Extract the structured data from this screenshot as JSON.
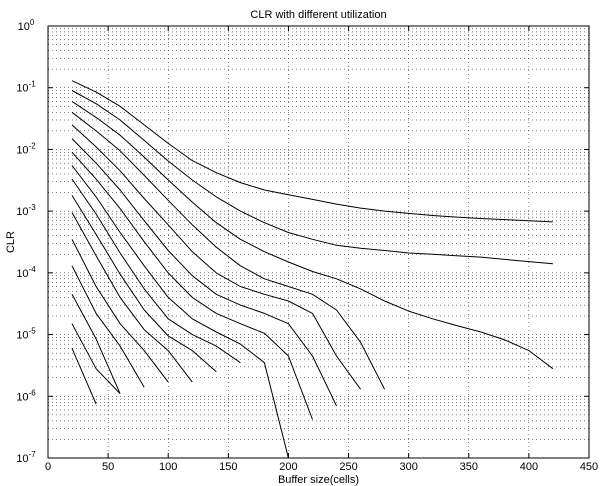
{
  "chart_data": {
    "type": "line",
    "title": "CLR with different utilization",
    "xlabel": "Buffer size(cells)",
    "ylabel": "CLR",
    "xlim": [
      0,
      450
    ],
    "ylim": [
      1e-07,
      1
    ],
    "yscale": "log",
    "grid": true,
    "x_ticks": [
      0,
      50,
      100,
      150,
      200,
      250,
      300,
      350,
      400,
      450
    ],
    "x_tick_labels": [
      "0",
      "50",
      "100",
      "150",
      "200",
      "250",
      "300",
      "350",
      "400",
      "450"
    ],
    "y_tick_exponents": [
      0,
      -1,
      -2,
      -3,
      -4,
      -5,
      -6,
      -7
    ],
    "y_tick_base": "10",
    "series": [
      {
        "x": [
          20,
          40,
          60,
          80,
          100,
          120,
          140,
          160,
          180,
          200,
          220,
          240,
          260,
          280,
          300,
          320,
          340,
          360,
          380,
          400,
          420
        ],
        "y": [
          0.13,
          0.085,
          0.05,
          0.025,
          0.0125,
          0.0066,
          0.0042,
          0.0029,
          0.0022,
          0.00185,
          0.00155,
          0.0013,
          0.00112,
          0.001,
          0.00092,
          0.00085,
          0.0008,
          0.00076,
          0.00073,
          0.0007,
          0.00067
        ]
      },
      {
        "x": [
          20,
          40,
          60,
          80,
          100,
          120,
          140,
          160,
          180,
          200,
          220,
          240,
          260,
          280,
          300,
          320,
          340,
          360,
          380,
          400,
          420
        ],
        "y": [
          0.09,
          0.055,
          0.03,
          0.014,
          0.0065,
          0.0032,
          0.0017,
          0.001,
          0.00065,
          0.00045,
          0.00035,
          0.00028,
          0.00025,
          0.00023,
          0.00021,
          0.0002,
          0.00019,
          0.00018,
          0.000165,
          0.000152,
          0.00014
        ]
      },
      {
        "x": [
          20,
          40,
          60,
          80,
          100,
          120,
          140,
          160,
          180,
          200,
          220,
          240,
          260,
          280,
          300,
          320,
          340,
          360,
          380,
          400,
          420
        ],
        "y": [
          0.06,
          0.033,
          0.017,
          0.0075,
          0.0032,
          0.0014,
          0.00065,
          0.00035,
          0.00022,
          0.00015,
          0.000105,
          8e-05,
          5.5e-05,
          3.5e-05,
          2.4e-05,
          1.8e-05,
          1.4e-05,
          1.1e-05,
          8.2e-06,
          5.5e-06,
          2.8e-06
        ]
      },
      {
        "x": [
          20,
          40,
          60,
          80,
          100,
          120,
          140,
          160,
          180,
          200,
          220,
          240,
          260,
          280
        ],
        "y": [
          0.04,
          0.02,
          0.0095,
          0.0038,
          0.0015,
          0.0006,
          0.00026,
          0.00013,
          8e-05,
          6e-05,
          4.5e-05,
          2.5e-05,
          7.5e-06,
          1.3e-06
        ]
      },
      {
        "x": [
          20,
          40,
          60,
          80,
          100,
          120,
          140,
          160,
          180,
          200,
          220,
          240,
          260
        ],
        "y": [
          0.025,
          0.011,
          0.0045,
          0.0016,
          0.0006,
          0.00022,
          0.0001,
          6e-05,
          4.5e-05,
          3.5e-05,
          2.2e-05,
          4.5e-06,
          1.3e-06
        ]
      },
      {
        "x": [
          20,
          40,
          60,
          80,
          100,
          120,
          140,
          160,
          180,
          200,
          220,
          240
        ],
        "y": [
          0.015,
          0.006,
          0.0022,
          0.0007,
          0.00023,
          9e-05,
          4.5e-05,
          3e-05,
          2.2e-05,
          1.5e-05,
          4.5e-06,
          7e-07
        ]
      },
      {
        "x": [
          20,
          40,
          60,
          80,
          100,
          120,
          140,
          160,
          180,
          200,
          220
        ],
        "y": [
          0.009,
          0.0033,
          0.0011,
          0.00032,
          0.0001,
          4e-05,
          2.2e-05,
          1.5e-05,
          1.05e-05,
          4.5e-06,
          4.2e-07
        ]
      },
      {
        "x": [
          20,
          40,
          60,
          80,
          100,
          120,
          140,
          160,
          180,
          200
        ],
        "y": [
          0.0055,
          0.0017,
          0.00045,
          0.00013,
          4e-05,
          1.8e-05,
          1.1e-05,
          7e-06,
          3.5e-06,
          1e-07
        ]
      },
      {
        "x": [
          20,
          40,
          60,
          80,
          100,
          120,
          140,
          160
        ],
        "y": [
          0.0033,
          0.0009,
          0.00021,
          5.5e-05,
          1.8e-05,
          1e-05,
          6.5e-06,
          3.5e-06
        ]
      },
      {
        "x": [
          20,
          40,
          60,
          80,
          100,
          120,
          140
        ],
        "y": [
          0.0018,
          0.00042,
          9.5e-05,
          2.5e-05,
          9.5e-06,
          5.5e-06,
          2.5e-06
        ]
      },
      {
        "x": [
          20,
          40,
          60,
          80,
          100,
          120
        ],
        "y": [
          0.00095,
          0.00019,
          4e-05,
          1.2e-05,
          5.5e-06,
          1.7e-06
        ]
      },
      {
        "x": [
          20,
          40,
          60,
          80,
          100
        ],
        "y": [
          0.00035,
          6e-05,
          1.5e-05,
          5.5e-06,
          1.7e-06
        ]
      },
      {
        "x": [
          20,
          40,
          60,
          80
        ],
        "y": [
          0.00013,
          2.2e-05,
          6.5e-06,
          1.4e-06
        ]
      },
      {
        "x": [
          20,
          40,
          60
        ],
        "y": [
          4.5e-05,
          8.5e-06,
          1.1e-06
        ]
      },
      {
        "x": [
          20,
          40,
          60
        ],
        "y": [
          1.5e-05,
          2.8e-06,
          1.1e-06
        ]
      },
      {
        "x": [
          20,
          40
        ],
        "y": [
          6e-06,
          7.5e-07
        ]
      }
    ]
  }
}
